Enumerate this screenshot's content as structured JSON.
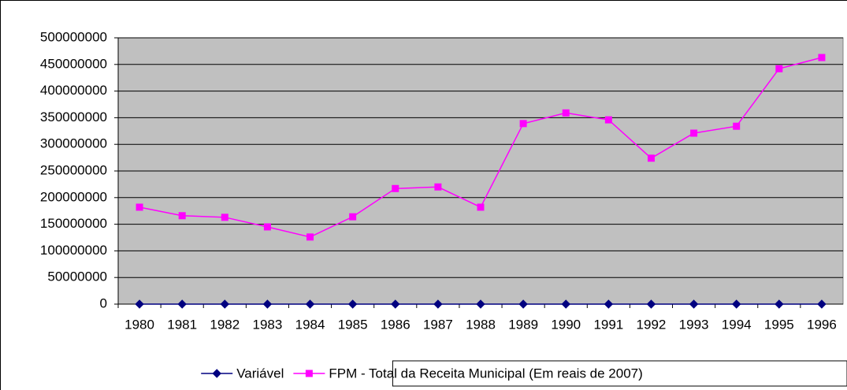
{
  "chart_data": {
    "type": "line",
    "categories": [
      "1980",
      "1981",
      "1982",
      "1983",
      "1984",
      "1985",
      "1986",
      "1987",
      "1988",
      "1989",
      "1990",
      "1991",
      "1992",
      "1993",
      "1994",
      "1995",
      "1996"
    ],
    "series": [
      {
        "name": "Variável",
        "color": "#000080",
        "marker": "diamond",
        "values": [
          0,
          0,
          0,
          0,
          0,
          0,
          0,
          0,
          0,
          0,
          0,
          0,
          0,
          0,
          0,
          0,
          0
        ]
      },
      {
        "name": "FPM - Total da Receita Municipal (Em reais de 2007)",
        "color": "#ff00ff",
        "marker": "square",
        "values": [
          182000000,
          166000000,
          163000000,
          145000000,
          126000000,
          164000000,
          217000000,
          220000000,
          182000000,
          339000000,
          359000000,
          346000000,
          274000000,
          321000000,
          334000000,
          442000000,
          463000000
        ]
      }
    ],
    "ylim": [
      0,
      500000000
    ],
    "yticks": [
      0,
      50000000,
      100000000,
      150000000,
      200000000,
      250000000,
      300000000,
      350000000,
      400000000,
      450000000,
      500000000
    ],
    "grid": true,
    "legend": "bottom",
    "plot_background": "#c0c0c0"
  }
}
